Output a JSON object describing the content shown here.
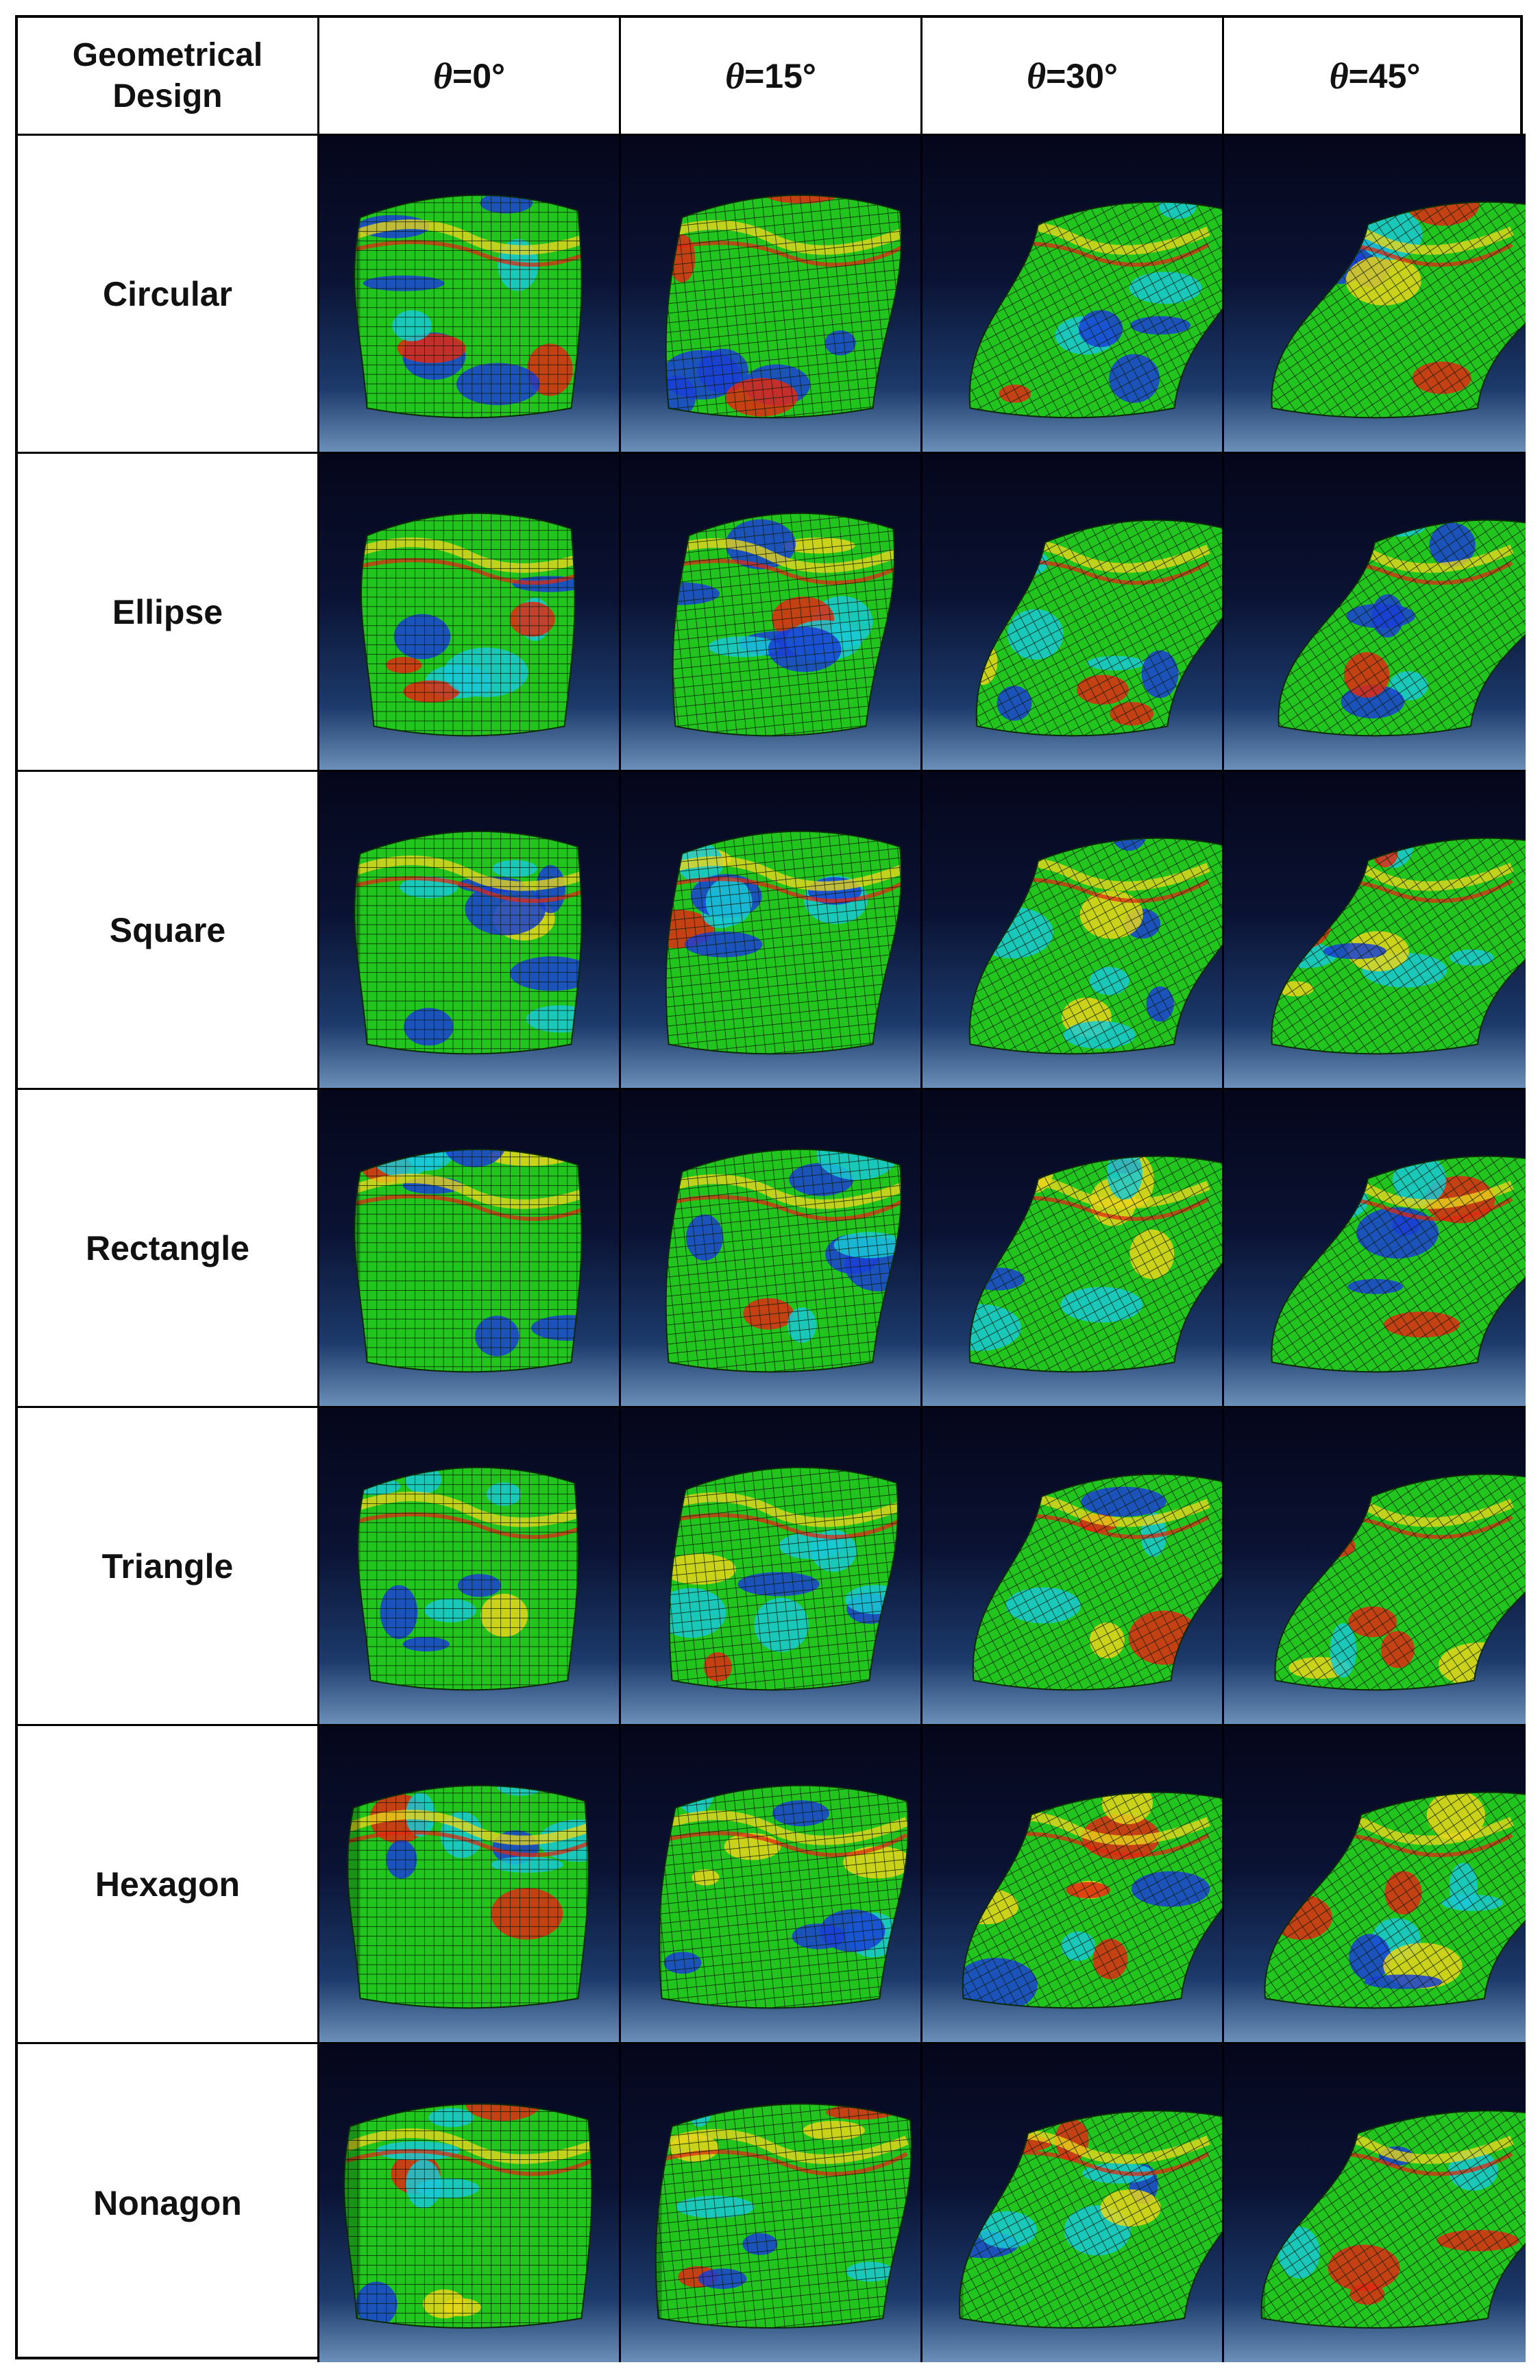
{
  "table": {
    "header_first": "Geometrical\nDesign",
    "columns": [
      {
        "symbol": "θ",
        "value": "=0°"
      },
      {
        "symbol": "θ",
        "value": "=15°"
      },
      {
        "symbol": "θ",
        "value": "=30°"
      },
      {
        "symbol": "θ",
        "value": "=45°"
      }
    ],
    "rows": [
      {
        "label": "Circular",
        "shape": "circular"
      },
      {
        "label": "Ellipse",
        "shape": "ellipse"
      },
      {
        "label": "Square",
        "shape": "square"
      },
      {
        "label": "Rectangle",
        "shape": "rectangle"
      },
      {
        "label": "Triangle",
        "shape": "triangle"
      },
      {
        "label": "Hexagon",
        "shape": "hexagon"
      },
      {
        "label": "Nonagon",
        "shape": "nonagon"
      }
    ],
    "colors": {
      "background_top": "#05061a",
      "background_bottom": "#6a8fb8",
      "mesh_green": "#22c41e",
      "mesh_blue": "#1a3fd6",
      "mesh_cyan": "#19c9d6",
      "mesh_yellow": "#e8d61a",
      "mesh_red": "#e02a12",
      "mesh_lines": "#0b1a08"
    }
  }
}
